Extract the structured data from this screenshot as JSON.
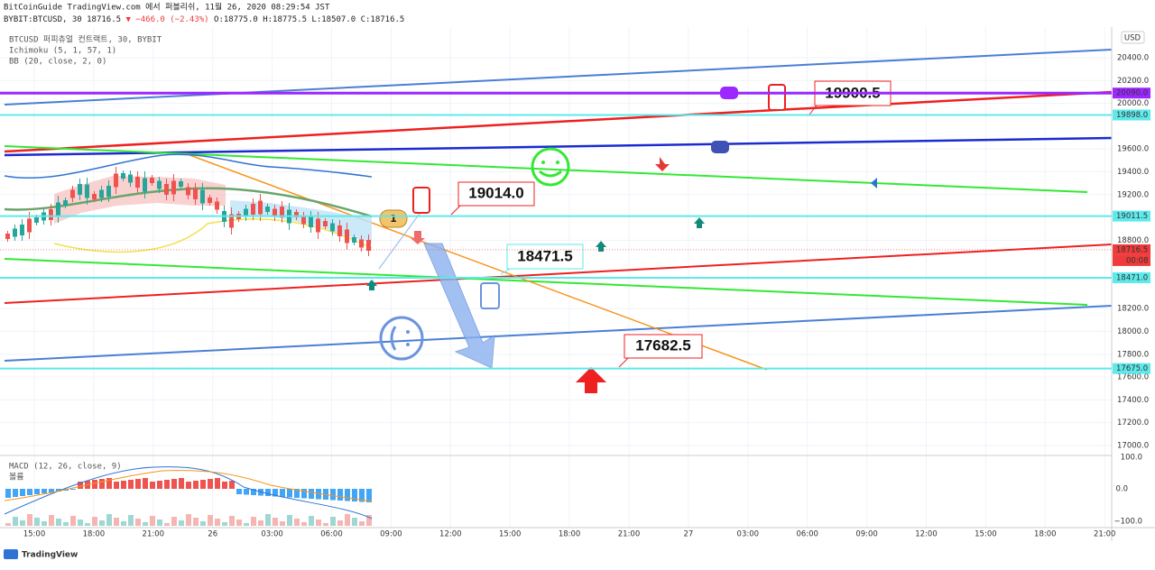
{
  "header": {
    "line1": "BitCoinGuide TradingView.com 에서 퍼블리쉬, 11월 26, 2020 08:29:54 JST",
    "symbol": "BYBIT:BTCUSD, 30",
    "price": "18716.5",
    "change": "▼ −466.0 (−2.43%)",
    "ohlc": "O:18775.0 H:18775.5 L:18507.0 C:18716.5"
  },
  "legend": [
    "BTCUSD 퍼피츄얼 컨트랙트, 30, BYBIT",
    "Ichimoku (5, 1, 57, 1)",
    "BB (20, close, 2, 0)"
  ],
  "macd_legend": [
    "MACD (12, 26, close, 9)",
    "볼륨"
  ],
  "price_axis": {
    "currency": "USD",
    "ticks": [
      {
        "value": 20400,
        "label": "20400.0"
      },
      {
        "value": 20200,
        "label": "20200.0"
      },
      {
        "value": 20000,
        "label": "20000.0"
      },
      {
        "value": 19600,
        "label": "19600.0"
      },
      {
        "value": 19400,
        "label": "19400.0"
      },
      {
        "value": 19200,
        "label": "19200.0"
      },
      {
        "value": 18800,
        "label": "18800.0"
      },
      {
        "value": 18200,
        "label": "18200.0"
      },
      {
        "value": 18000,
        "label": "18000.0"
      },
      {
        "value": 17800,
        "label": "17800.0"
      },
      {
        "value": 17600,
        "label": "17600.0"
      },
      {
        "value": 17400,
        "label": "17400.0"
      },
      {
        "value": 17200,
        "label": "17200.0"
      },
      {
        "value": 17000,
        "label": "17000.0"
      }
    ],
    "labels": [
      {
        "value": 20090,
        "label": "20090.0",
        "color": "#9c27ff"
      },
      {
        "value": 19898,
        "label": "19898.0",
        "color": "#5ee9ea"
      },
      {
        "value": 19011.5,
        "label": "19011.5",
        "color": "#5ee9ea"
      },
      {
        "value": 18716.5,
        "label": "18716.5",
        "color": "#ef3b3b"
      },
      {
        "value": 18471,
        "label": "18471.0",
        "color": "#5ee9ea"
      },
      {
        "value": 17675,
        "label": "17675.0",
        "color": "#5ee9ea"
      }
    ],
    "countdown": "00:08"
  },
  "time_axis": [
    "15:00",
    "18:00",
    "21:00",
    "26",
    "03:00",
    "06:00",
    "09:00",
    "12:00",
    "15:00",
    "18:00",
    "21:00",
    "27",
    "03:00",
    "06:00",
    "09:00",
    "12:00",
    "15:00",
    "18:00",
    "21:00"
  ],
  "macd_axis": [
    "100.0",
    "0.0",
    "−100.0"
  ],
  "annotations": [
    "19900.5",
    "19014.0",
    "18471.5",
    "17682.5",
    "1"
  ],
  "footer": "TradingView"
}
